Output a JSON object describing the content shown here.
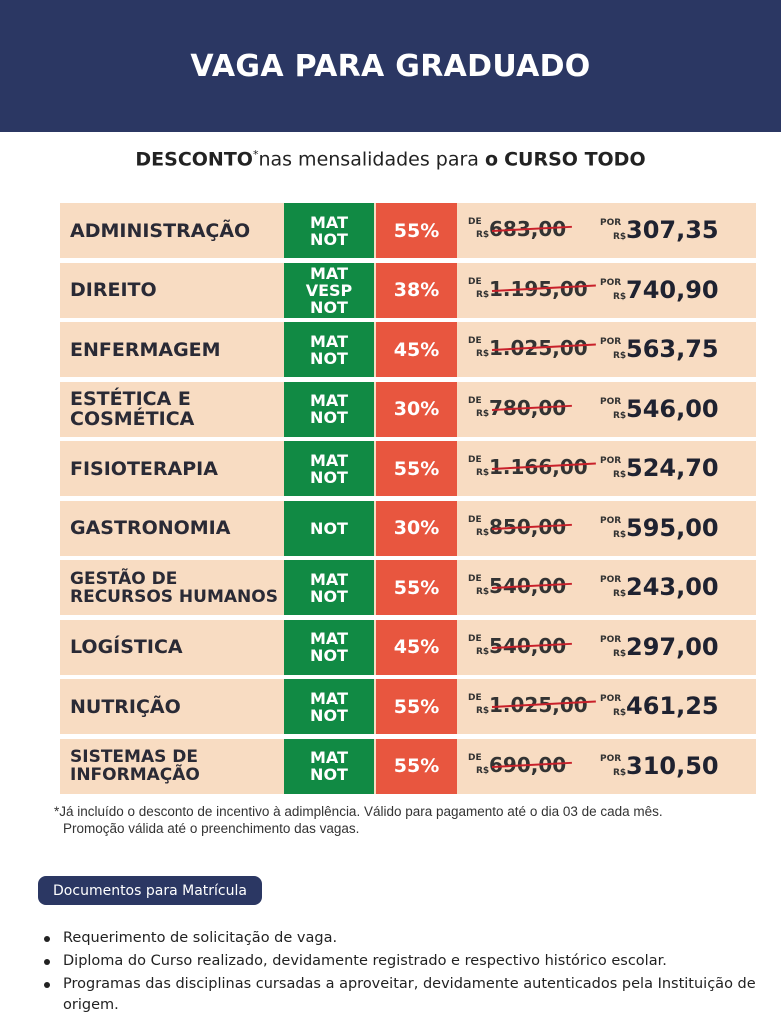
{
  "header": {
    "title": "VAGA PARA GRADUADO"
  },
  "subtitle": {
    "bold_prefix": "DESCONTO",
    "asterisk": "*",
    "middle": "nas mensalidades para ",
    "bold_o": "o",
    "bold_suffix": "CURSO TODO"
  },
  "labels": {
    "de": "DE",
    "por": "POR",
    "currency": "R$"
  },
  "courses": [
    {
      "name": "ADMINISTRAÇÃO",
      "shift": [
        "MAT",
        "NOT"
      ],
      "discount": "55%",
      "from": "683,00",
      "to": "307,35"
    },
    {
      "name": "DIREITO",
      "shift": [
        "MAT",
        "VESP",
        "NOT"
      ],
      "discount": "38%",
      "from": "1.195,00",
      "to": "740,90"
    },
    {
      "name": "ENFERMAGEM",
      "shift": [
        "MAT",
        "NOT"
      ],
      "discount": "45%",
      "from": "1.025,00",
      "to": "563,75"
    },
    {
      "name": "ESTÉTICA E COSMÉTICA",
      "shift": [
        "MAT",
        "NOT"
      ],
      "discount": "30%",
      "from": "780,00",
      "to": "546,00"
    },
    {
      "name": "FISIOTERAPIA",
      "shift": [
        "MAT",
        "NOT"
      ],
      "discount": "55%",
      "from": "1.166,00",
      "to": "524,70"
    },
    {
      "name": "GASTRONOMIA",
      "shift": [
        "NOT"
      ],
      "discount": "30%",
      "from": "850,00",
      "to": "595,00"
    },
    {
      "name": "GESTÃO DE RECURSOS HUMANOS",
      "shift": [
        "MAT",
        "NOT"
      ],
      "discount": "55%",
      "from": "540,00",
      "to": "243,00"
    },
    {
      "name": "LOGÍSTICA",
      "shift": [
        "MAT",
        "NOT"
      ],
      "discount": "45%",
      "from": "540,00",
      "to": "297,00"
    },
    {
      "name": "NUTRIÇÃO",
      "shift": [
        "MAT",
        "NOT"
      ],
      "discount": "55%",
      "from": "1.025,00",
      "to": "461,25"
    },
    {
      "name": "SISTEMAS DE INFORMAÇÃO",
      "shift": [
        "MAT",
        "NOT"
      ],
      "discount": "55%",
      "from": "690,00",
      "to": "310,50"
    }
  ],
  "note": {
    "line1": "*Já incluído o desconto de incentivo à adimplência. Válido para pagamento até o dia 03 de cada mês.",
    "line2": "Promoção válida até o preenchimento das vagas."
  },
  "documents": {
    "title": "Documentos para Matrícula",
    "items": [
      "Requerimento de solicitação de vaga.",
      "Diploma do Curso realizado, devidamente registrado e respectivo histórico escolar.",
      "Programas das disciplinas cursadas a aproveitar, devidamente autenticados pela Instituição de origem."
    ]
  },
  "colors": {
    "header_bg": "#2b3763",
    "row_bg": "#f8dcc2",
    "shift_bg": "#118a44",
    "discount_bg": "#e8563f",
    "strike": "#c8202a"
  }
}
